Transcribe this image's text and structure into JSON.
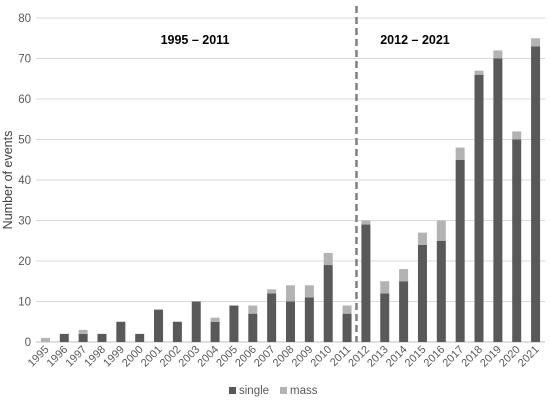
{
  "chart_data": {
    "type": "bar",
    "stacked": true,
    "categories": [
      "1995",
      "1996",
      "1997",
      "1998",
      "1999",
      "2000",
      "2001",
      "2002",
      "2003",
      "2004",
      "2005",
      "2006",
      "2007",
      "2008",
      "2009",
      "2010",
      "2011",
      "2012",
      "2013",
      "2014",
      "2015",
      "2016",
      "2017",
      "2018",
      "2019",
      "2020",
      "2021"
    ],
    "series": [
      {
        "name": "single",
        "color": "#595959",
        "values": [
          0,
          2,
          2,
          2,
          5,
          2,
          8,
          5,
          10,
          5,
          9,
          7,
          12,
          10,
          11,
          19,
          7,
          29,
          12,
          15,
          24,
          25,
          45,
          66,
          70,
          50,
          73
        ]
      },
      {
        "name": "mass",
        "color": "#b3b3b3",
        "values": [
          1,
          0,
          1,
          0,
          0,
          0,
          0,
          0,
          0,
          1,
          0,
          2,
          1,
          4,
          3,
          3,
          2,
          1,
          3,
          3,
          3,
          5,
          3,
          1,
          2,
          2,
          2
        ]
      }
    ],
    "ylabel": "Number of events",
    "xlabel": "",
    "ylim": [
      0,
      80
    ],
    "yticks": [
      0,
      10,
      20,
      30,
      40,
      50,
      60,
      70,
      80
    ],
    "grid": true,
    "legend": "bottom",
    "divider": {
      "between": [
        "2011",
        "2012"
      ],
      "style": "dashed",
      "color": "#7f7f7f"
    },
    "period_labels": [
      {
        "text": "1995 – 2011",
        "side": "left"
      },
      {
        "text": "2012 – 2021",
        "side": "right"
      }
    ]
  }
}
